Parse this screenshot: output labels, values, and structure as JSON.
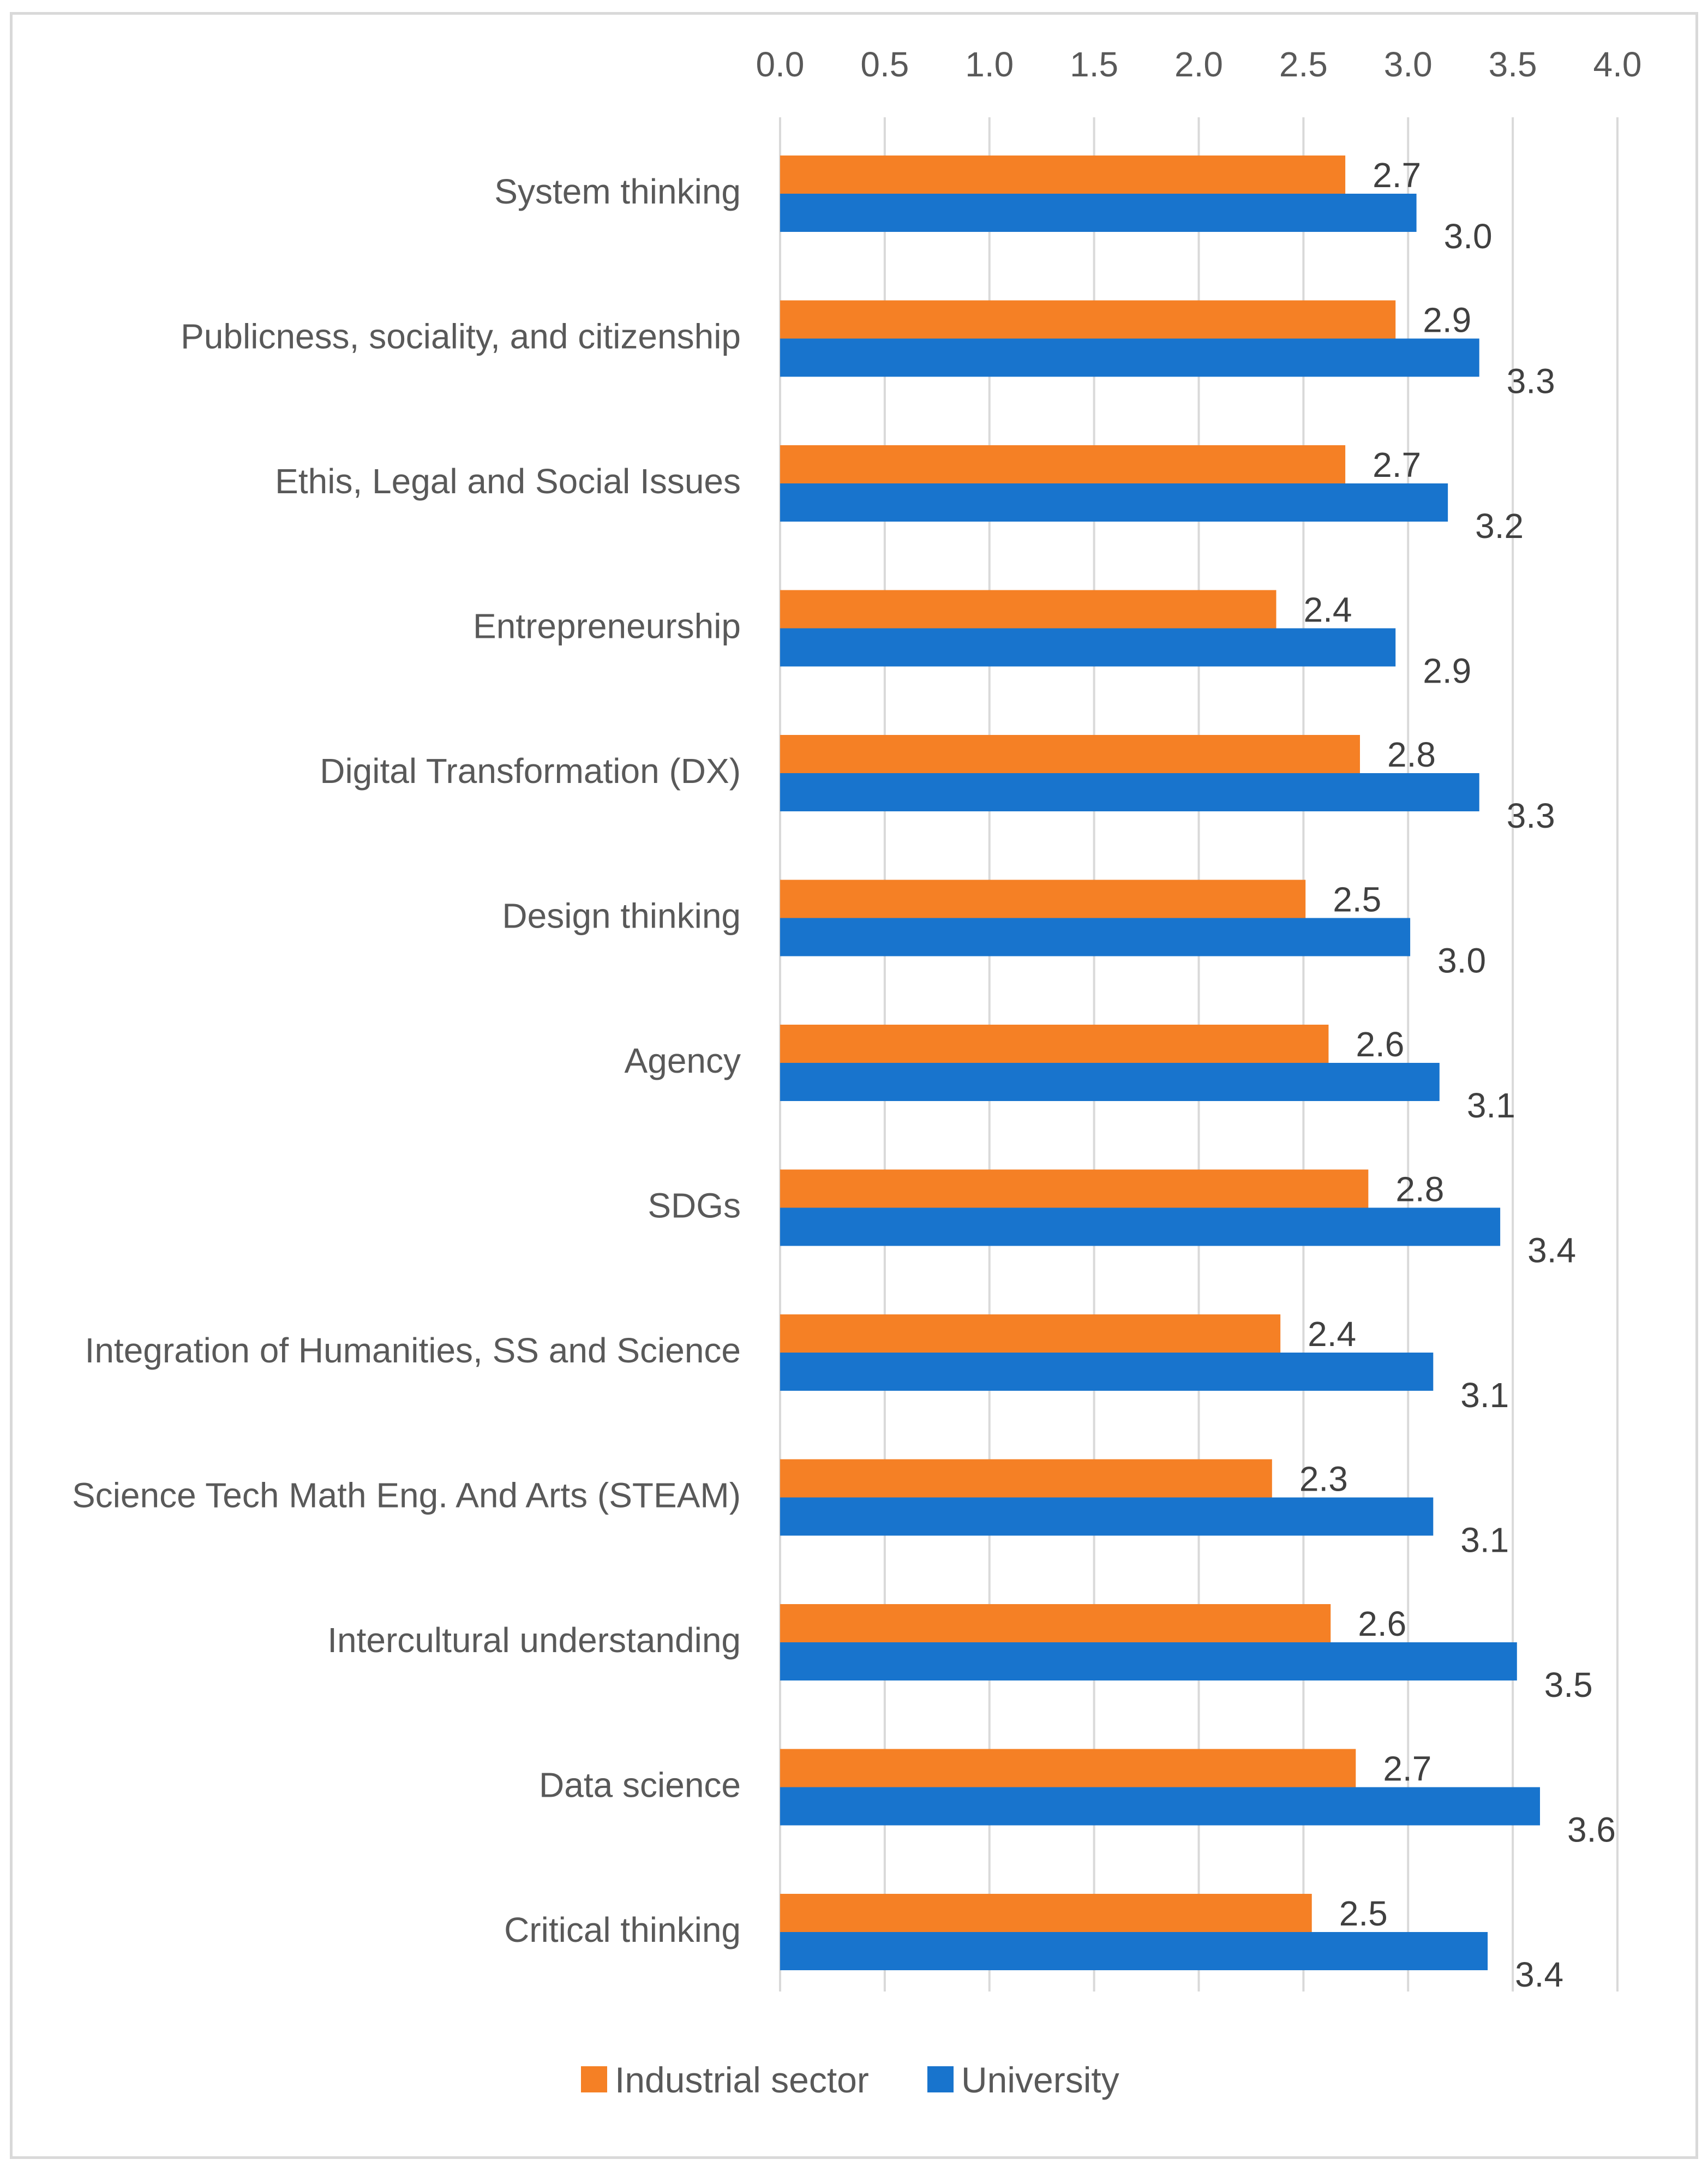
{
  "chart_data": {
    "type": "bar",
    "orientation": "horizontal",
    "title": "",
    "xlabel": "",
    "ylabel": "",
    "xlim": [
      0,
      4.0
    ],
    "x_ticks": [
      "0.0",
      "0.5",
      "1.0",
      "1.5",
      "2.0",
      "2.5",
      "3.0",
      "3.5",
      "4.0"
    ],
    "grid": true,
    "axis_position": "top",
    "legend_position": "bottom",
    "categories": [
      "System thinking",
      "Publicness, sociality, and citizenship",
      "Ethis, Legal and Social Issues",
      "Entrepreneurship",
      "Digital Transformation (DX)",
      "Design thinking",
      "Agency",
      "SDGs",
      "Integration of Humanities, SS and Science",
      "Science Tech Math Eng. And Arts (STEAM)",
      "Intercultural understanding",
      "Data science",
      "Critical thinking"
    ],
    "series": [
      {
        "name": "Industrial sector",
        "color": "#F58025",
        "values": [
          2.7,
          2.94,
          2.7,
          2.37,
          2.77,
          2.51,
          2.62,
          2.81,
          2.39,
          2.35,
          2.63,
          2.75,
          2.54
        ],
        "labels": [
          "2.7",
          "2.9",
          "2.7",
          "2.4",
          "2.8",
          "2.5",
          "2.6",
          "2.8",
          "2.4",
          "2.3",
          "2.6",
          "2.7",
          "2.5"
        ]
      },
      {
        "name": "University",
        "color": "#1874CD",
        "values": [
          3.04,
          3.34,
          3.19,
          2.94,
          3.34,
          3.01,
          3.15,
          3.44,
          3.12,
          3.12,
          3.52,
          3.63,
          3.38
        ],
        "labels": [
          "3.0",
          "3.3",
          "3.2",
          "2.9",
          "3.3",
          "3.0",
          "3.1",
          "3.4",
          "3.1",
          "3.1",
          "3.5",
          "3.6",
          "3.4"
        ]
      }
    ]
  }
}
